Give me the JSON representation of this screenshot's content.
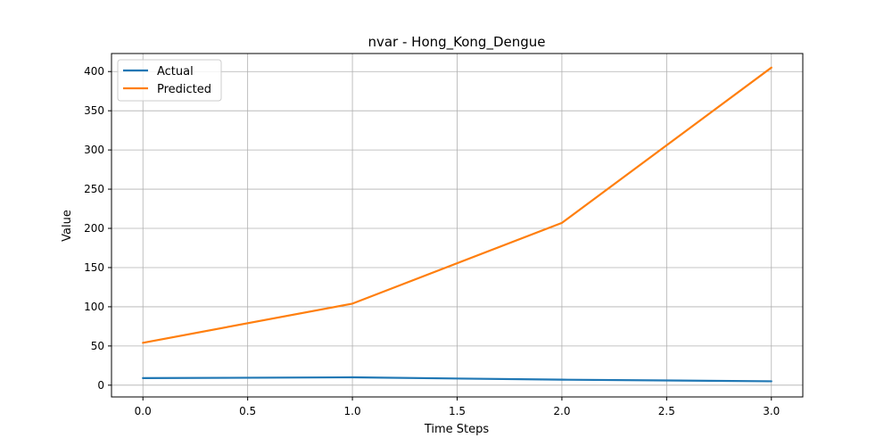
{
  "chart_data": {
    "type": "line",
    "title": "nvar - Hong_Kong_Dengue",
    "xlabel": "Time Steps",
    "ylabel": "Value",
    "x": [
      0,
      1,
      2,
      3
    ],
    "xlim": [
      -0.15,
      3.15
    ],
    "ylim": [
      -15,
      423
    ],
    "xticks": [
      0.0,
      0.5,
      1.0,
      1.5,
      2.0,
      2.5,
      3.0
    ],
    "xtick_labels": [
      "0.0",
      "0.5",
      "1.0",
      "1.5",
      "2.0",
      "2.5",
      "3.0"
    ],
    "yticks": [
      0,
      50,
      100,
      150,
      200,
      250,
      300,
      350,
      400
    ],
    "ytick_labels": [
      "0",
      "50",
      "100",
      "150",
      "200",
      "250",
      "300",
      "350",
      "400"
    ],
    "grid": true,
    "legend_position": "top-left",
    "series": [
      {
        "name": "Actual",
        "color": "#1f77b4",
        "values": [
          9,
          10,
          7,
          5
        ]
      },
      {
        "name": "Predicted",
        "color": "#ff7f0e",
        "values": [
          54,
          104,
          207,
          405
        ]
      }
    ]
  }
}
